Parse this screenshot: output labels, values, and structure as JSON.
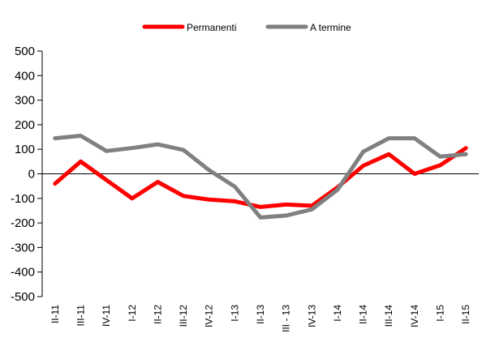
{
  "chart_data": {
    "type": "line",
    "title": "",
    "xlabel": "",
    "ylabel": "",
    "ylim": [
      -500,
      500
    ],
    "yticks": [
      500,
      400,
      300,
      200,
      100,
      0,
      -100,
      -200,
      -300,
      -400,
      -500
    ],
    "grid": false,
    "legend_position": "top-center",
    "categories": [
      "II-11",
      "III-11",
      "IV-11",
      "I-12",
      "II-12",
      "III-12",
      "IV-12",
      "I-13",
      "II-13",
      "III - 13",
      "IV-13",
      "I-14",
      "II-14",
      "III-14",
      "IV-14",
      "I-15",
      "II-15"
    ],
    "series": [
      {
        "name": "Permanenti",
        "color": "#ff0000",
        "values": [
          -40,
          50,
          -25,
          -100,
          -33,
          -90,
          -105,
          -112,
          -135,
          -125,
          -130,
          -55,
          33,
          80,
          0,
          35,
          105
        ]
      },
      {
        "name": "A termine",
        "color": "#808080",
        "values": [
          145,
          155,
          93,
          105,
          120,
          97,
          15,
          -52,
          -178,
          -170,
          -145,
          -65,
          90,
          145,
          145,
          70,
          80
        ]
      }
    ]
  }
}
